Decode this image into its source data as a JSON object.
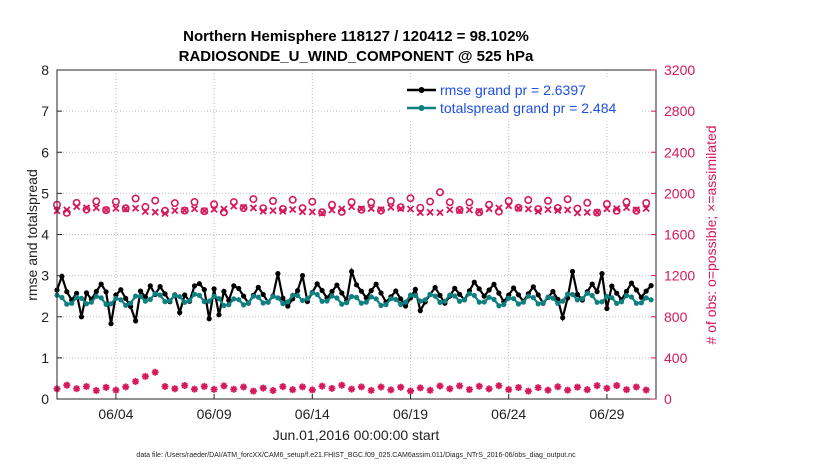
{
  "chart_data": {
    "type": "line",
    "title_line1": "Northern Hemisphere 118127 / 120412 = 98.102%",
    "title_line2": "RADIOSONDE_U_WIND_COMPONENT @ 525 hPa",
    "ylabel_left": "rmse and totalspread",
    "ylabel_right": "# of obs: o=possible; ×=assimilated",
    "xlabel": "Jun.01,2016 00:00:00 start",
    "footnote": "data file: /Users/raeder/DAI/ATM_forcXX/CAM6_setup/f.e21.FHIST_BGC.f09_025.CAM6assim.011/Diags_NTrS_2016-06/obs_diag_output.nc",
    "x_range": [
      1,
      31.5
    ],
    "ylim_left": [
      0,
      8
    ],
    "ylim_right": [
      0,
      3200
    ],
    "yticks_left": [
      "0",
      "1",
      "2",
      "3",
      "4",
      "5",
      "6",
      "7",
      "8"
    ],
    "yticks_right": [
      "0",
      "400",
      "800",
      "1200",
      "1600",
      "2000",
      "2400",
      "2800",
      "3200"
    ],
    "xticks": [
      {
        "x": 4,
        "label": "06/04"
      },
      {
        "x": 9,
        "label": "06/09"
      },
      {
        "x": 14,
        "label": "06/14"
      },
      {
        "x": 19,
        "label": "06/19"
      },
      {
        "x": 24,
        "label": "06/24"
      },
      {
        "x": 29,
        "label": "06/29"
      }
    ],
    "legend": [
      {
        "label": "rmse grand pr = 2.6397",
        "color": "#000000"
      },
      {
        "label": "totalspread grand pr = 2.484",
        "color": "#0f7f7f"
      }
    ],
    "series": [
      {
        "name": "rmse",
        "axis": "left",
        "color": "#000000",
        "base": 2.55,
        "amplitude": 0.22,
        "special": [
          [
            1.25,
            2.98
          ],
          [
            2.25,
            2.0
          ],
          [
            3.75,
            1.83
          ],
          [
            5.0,
            1.9
          ],
          [
            5.75,
            2.75
          ],
          [
            7.25,
            2.1
          ],
          [
            8.0,
            2.75
          ],
          [
            8.75,
            1.95
          ],
          [
            9.25,
            2.05
          ],
          [
            10.0,
            2.75
          ],
          [
            12.25,
            3.05
          ],
          [
            13.5,
            3.0
          ],
          [
            16.0,
            3.1
          ],
          [
            19.5,
            2.15
          ],
          [
            26.75,
            1.98
          ],
          [
            27.25,
            3.1
          ],
          [
            28.75,
            3.05
          ],
          [
            29.0,
            2.2
          ]
        ]
      },
      {
        "name": "totalspread",
        "axis": "left",
        "color": "#0f7f7f",
        "base": 2.42,
        "amplitude": 0.13,
        "special": []
      },
      {
        "name": "obs_possible",
        "axis": "right",
        "color": "#d6195b",
        "marker": "o",
        "base": 1880,
        "amplitude": 55,
        "special": [
          [
            20.5,
            2010
          ]
        ]
      },
      {
        "name": "obs_assimilated",
        "axis": "right",
        "color": "#d6195b",
        "marker": "x",
        "base": 1840,
        "amplitude": 55,
        "special": []
      },
      {
        "name": "obs_rejected",
        "axis": "right",
        "color": "#d6195b",
        "marker": "*",
        "base": 105,
        "amplitude": 25,
        "special": [
          [
            5.0,
            170
          ],
          [
            5.5,
            220
          ],
          [
            6.0,
            260
          ],
          [
            31.25,
            0
          ]
        ]
      }
    ]
  }
}
